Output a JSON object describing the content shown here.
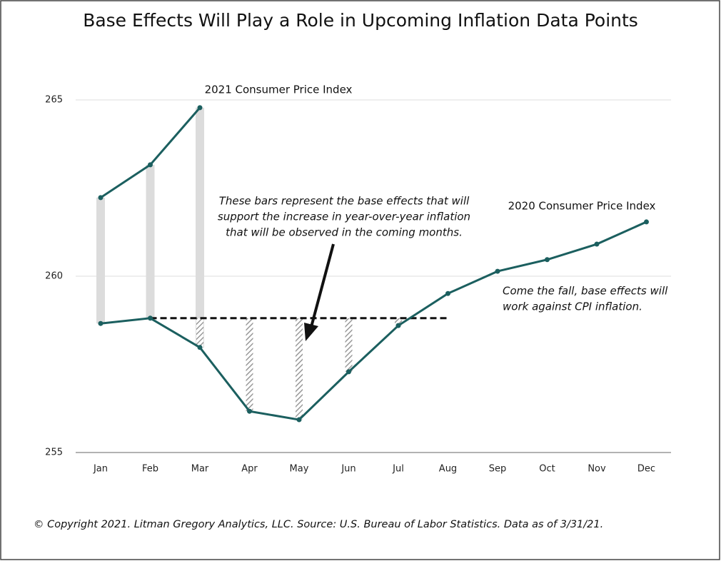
{
  "chart_data": {
    "type": "line",
    "title": "Base Effects Will Play a Role in Upcoming Inflation Data Points",
    "categories": [
      "Jan",
      "Feb",
      "Mar",
      "Apr",
      "May",
      "Jun",
      "Jul",
      "Aug",
      "Sep",
      "Oct",
      "Nov",
      "Dec"
    ],
    "series": [
      {
        "name": "2020 Consumer Price Index",
        "color": "#1b5f5f",
        "values": [
          258.66,
          258.81,
          257.98,
          256.17,
          255.93,
          257.29,
          258.6,
          259.51,
          260.14,
          260.47,
          260.91,
          261.54
        ]
      },
      {
        "name": "2021 Consumer Price Index",
        "color": "#1b5f5f",
        "values": [
          262.23,
          263.16,
          264.78,
          null,
          null,
          null,
          null,
          null,
          null,
          null,
          null,
          null
        ]
      }
    ],
    "ylim": [
      255,
      265
    ],
    "yticks": [
      255,
      260,
      265
    ],
    "grid": true,
    "notes": [
      [
        "These bars represent the base effects that will",
        "support the increase in year-over-year inflation",
        "that will be observed in the coming months."
      ],
      [
        "Come the fall, base effects will",
        "work against CPI inflation."
      ]
    ],
    "footer": "© Copyright 2021. Litman Gregory Analytics, LLC. Source: U.S. Bureau of Labor Statistics. Data as of 3/31/21."
  }
}
